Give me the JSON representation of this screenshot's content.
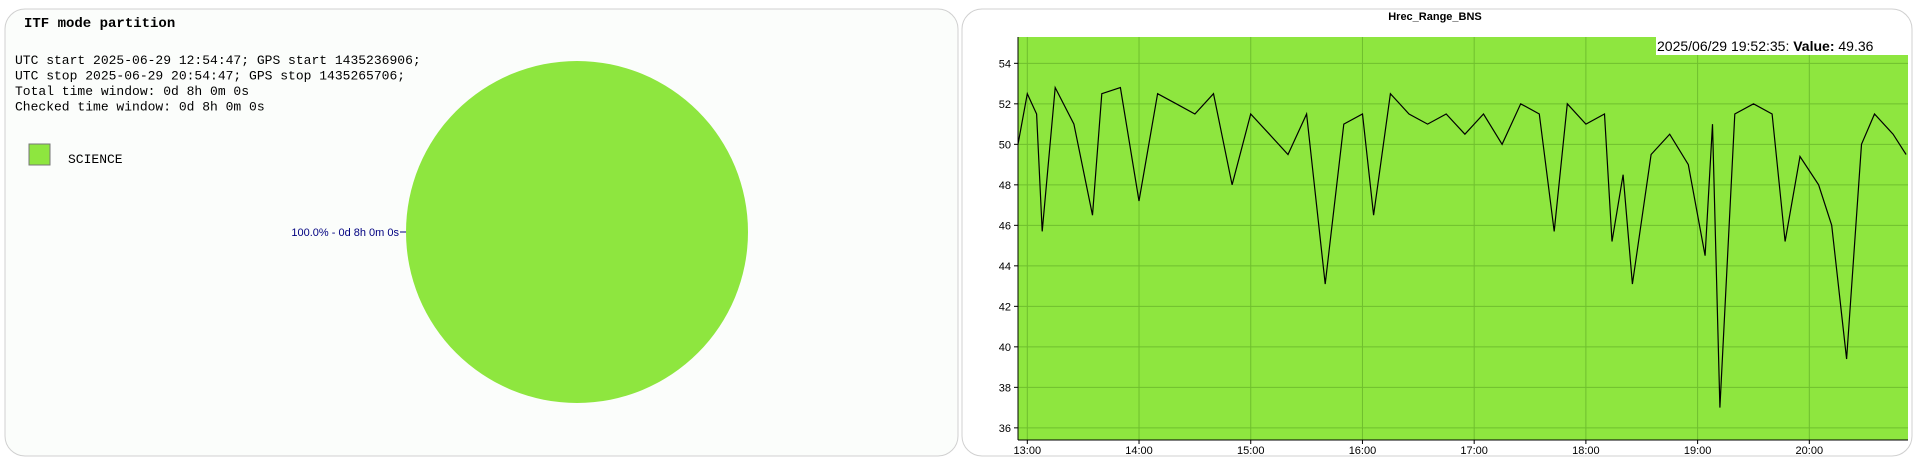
{
  "chart_data": [
    {
      "type": "pie",
      "title": "ITF mode partition",
      "info_lines": [
        "UTC start 2025-06-29 12:54:47; GPS start 1435236906;",
        "UTC stop 2025-06-29 20:54:47; GPS stop 1435265706;",
        "Total time window: 0d 8h 0m 0s",
        "Checked time window: 0d 8h 0m 0s"
      ],
      "categories": [
        "SCIENCE"
      ],
      "values": [
        100
      ],
      "value_labels": [
        "100.0% - 0d 8h 0m 0s"
      ],
      "colors": [
        "#8ee63f"
      ]
    },
    {
      "type": "line",
      "title": "Hrec_Range_BNS",
      "annotation": {
        "time": "2025/06/29 19:52:35:",
        "key": "Value:",
        "value": 49.36
      },
      "x": [
        "12:55",
        "13:00",
        "13:05",
        "13:08",
        "13:15",
        "13:25",
        "13:35",
        "13:40",
        "13:50",
        "14:00",
        "14:10",
        "14:20",
        "14:30",
        "14:40",
        "14:50",
        "15:00",
        "15:10",
        "15:20",
        "15:30",
        "15:40",
        "15:50",
        "16:00",
        "16:06",
        "16:15",
        "16:25",
        "16:35",
        "16:45",
        "16:55",
        "17:05",
        "17:15",
        "17:25",
        "17:35",
        "17:43",
        "17:50",
        "18:00",
        "18:10",
        "18:14",
        "18:20",
        "18:25",
        "18:35",
        "18:45",
        "18:55",
        "19:04",
        "19:08",
        "19:12",
        "19:20",
        "19:30",
        "19:40",
        "19:47",
        "19:55",
        "20:05",
        "20:12",
        "20:20",
        "20:28",
        "20:35",
        "20:45",
        "20:52"
      ],
      "values": [
        50.0,
        52.5,
        51.5,
        45.7,
        52.8,
        51.0,
        46.5,
        52.5,
        52.8,
        47.2,
        52.5,
        52.0,
        51.5,
        52.5,
        48.0,
        51.5,
        50.5,
        49.5,
        51.5,
        43.1,
        51.0,
        51.5,
        46.5,
        52.5,
        51.5,
        51.0,
        51.5,
        50.5,
        51.5,
        50.0,
        52.0,
        51.5,
        45.7,
        52.0,
        51.0,
        51.5,
        45.2,
        48.5,
        43.1,
        49.5,
        50.5,
        49.0,
        44.5,
        51.0,
        37.0,
        51.5,
        52.0,
        51.5,
        45.2,
        49.4,
        48.0,
        46.0,
        39.4,
        50.0,
        51.5,
        50.5,
        49.5
      ],
      "color": "#000000",
      "background": "#8ee63f",
      "grid": true,
      "xlim": [
        "12:55",
        "20:53"
      ],
      "xticks": [
        "13:00",
        "14:00",
        "15:00",
        "16:00",
        "17:00",
        "18:00",
        "19:00",
        "20:00"
      ],
      "ylim": [
        35.4,
        55.3
      ],
      "yticks": [
        36,
        38,
        40,
        42,
        44,
        46,
        48,
        50,
        52,
        54
      ]
    }
  ]
}
